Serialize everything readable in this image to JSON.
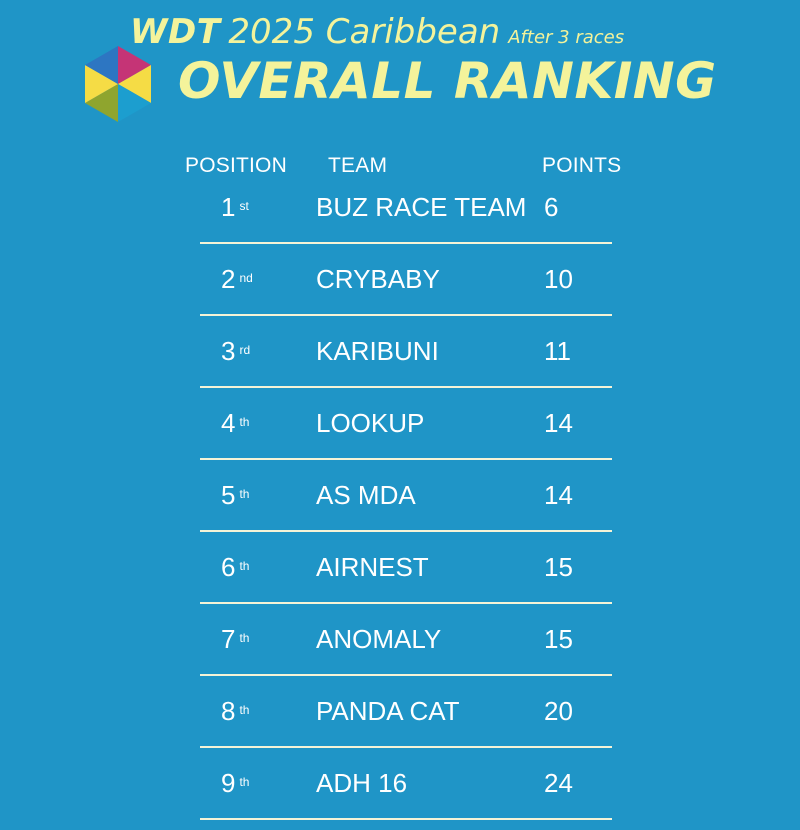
{
  "header": {
    "brand": "WDT",
    "event": "2025 Caribbean",
    "subtitle": "After 3 races",
    "title": "OVERALL RANKING",
    "logo": {
      "icon": "hexagon-logo",
      "colors": [
        "#f5dc45",
        "#2d76c2",
        "#c53476",
        "#f5dc45",
        "#1c9ecf",
        "#8fa52e"
      ]
    }
  },
  "table": {
    "columns": {
      "position": "POSITION",
      "team": "TEAM",
      "points": "POINTS"
    },
    "rows": [
      {
        "position": "1",
        "suffix": "st",
        "team": "BUZ RACE TEAM",
        "points": "6"
      },
      {
        "position": "2",
        "suffix": "nd",
        "team": "CRYBABY",
        "points": "10"
      },
      {
        "position": "3",
        "suffix": "rd",
        "team": "KARIBUNI",
        "points": "11"
      },
      {
        "position": "4",
        "suffix": "th",
        "team": "LOOKUP",
        "points": "14"
      },
      {
        "position": "5",
        "suffix": "th",
        "team": "AS MDA",
        "points": "14"
      },
      {
        "position": "6",
        "suffix": "th",
        "team": "AIRNEST",
        "points": "15"
      },
      {
        "position": "7",
        "suffix": "th",
        "team": "ANOMALY",
        "points": "15"
      },
      {
        "position": "8",
        "suffix": "th",
        "team": "PANDA CAT",
        "points": "20"
      },
      {
        "position": "9",
        "suffix": "th",
        "team": "ADH 16",
        "points": "24"
      }
    ]
  },
  "theme": {
    "background": "#1f95c7",
    "title_color": "#f4f39b",
    "text_color": "#ffffff",
    "divider_color": "#f4f3d7"
  }
}
